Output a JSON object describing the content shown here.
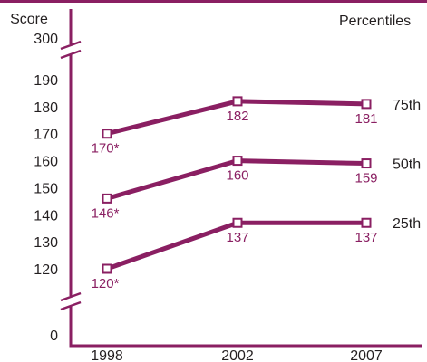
{
  "chart_data": {
    "type": "line",
    "y_axis_title": "Score",
    "legend_title": "Percentiles",
    "categories": [
      "1998",
      "2002",
      "2007"
    ],
    "y_ticks_main": [
      120,
      130,
      140,
      150,
      160,
      170,
      180,
      190
    ],
    "y_tick_top": 300,
    "y_tick_bottom": 0,
    "y_axis_breaks": true,
    "series": [
      {
        "name": "75th",
        "values": [
          170,
          182,
          181
        ],
        "labels": [
          "170*",
          "182",
          "181"
        ]
      },
      {
        "name": "50th",
        "values": [
          146,
          160,
          159
        ],
        "labels": [
          "146*",
          "160",
          "159"
        ]
      },
      {
        "name": "25th",
        "values": [
          120,
          137,
          137
        ],
        "labels": [
          "120*",
          "137",
          "137"
        ]
      }
    ],
    "colors": {
      "line": "#8a1f62",
      "frame": "#8a1f62",
      "text": "#231f20"
    }
  }
}
